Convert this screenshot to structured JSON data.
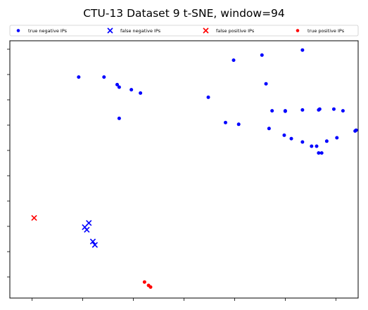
{
  "chart_data": {
    "type": "scatter",
    "title": "CTU-13 Dataset 9 t-SNE, window=94",
    "xlabel": "",
    "ylabel": "",
    "xlim": [
      -22,
      322
    ],
    "ylim": [
      -225,
      80
    ],
    "x_ticks": [
      0,
      50,
      100,
      150,
      200,
      250,
      300
    ],
    "y_ticks": [
      -200,
      -170,
      -140,
      -110,
      -80,
      -50,
      -20,
      10,
      40,
      70
    ],
    "tick_labels_visible": false,
    "grid": false,
    "legend_position": "top (above axes, 4 columns)",
    "series": [
      {
        "name": "true negative IPs",
        "marker": "dot",
        "color": "#0000ff",
        "points": [
          [
            46,
            37
          ],
          [
            71,
            37
          ],
          [
            84,
            28
          ],
          [
            86,
            25
          ],
          [
            98,
            22
          ],
          [
            107,
            18
          ],
          [
            86,
            -12
          ],
          [
            174,
            13
          ],
          [
            199,
            57
          ],
          [
            227,
            63
          ],
          [
            231,
            29
          ],
          [
            267,
            69
          ],
          [
            191,
            -17
          ],
          [
            204,
            -19
          ],
          [
            234,
            -24
          ],
          [
            237,
            -3
          ],
          [
            250,
            -3
          ],
          [
            250,
            -3.5
          ],
          [
            267,
            -2
          ],
          [
            284,
            -1
          ],
          [
            298,
            -1
          ],
          [
            307,
            -3
          ],
          [
            283,
            -2
          ],
          [
            249,
            -32
          ],
          [
            256,
            -36
          ],
          [
            267,
            -40
          ],
          [
            276,
            -45
          ],
          [
            281,
            -45
          ],
          [
            283,
            -53
          ],
          [
            286,
            -53
          ],
          [
            291,
            -39
          ],
          [
            301,
            -35
          ],
          [
            319,
            -27
          ],
          [
            320,
            -26
          ]
        ]
      },
      {
        "name": "false negative IPs",
        "marker": "x",
        "color": "#0000ff",
        "points": [
          [
            56,
            -136
          ],
          [
            52,
            -141
          ],
          [
            54,
            -144
          ],
          [
            60,
            -158
          ],
          [
            62,
            -162
          ]
        ]
      },
      {
        "name": "false positive IPs",
        "marker": "x",
        "color": "#ff0000",
        "points": [
          [
            2,
            -130
          ]
        ]
      },
      {
        "name": "true positive IPs",
        "marker": "dot",
        "color": "#ff0000",
        "points": [
          [
            111,
            -206
          ],
          [
            115,
            -210
          ],
          [
            117,
            -212
          ]
        ]
      }
    ]
  }
}
